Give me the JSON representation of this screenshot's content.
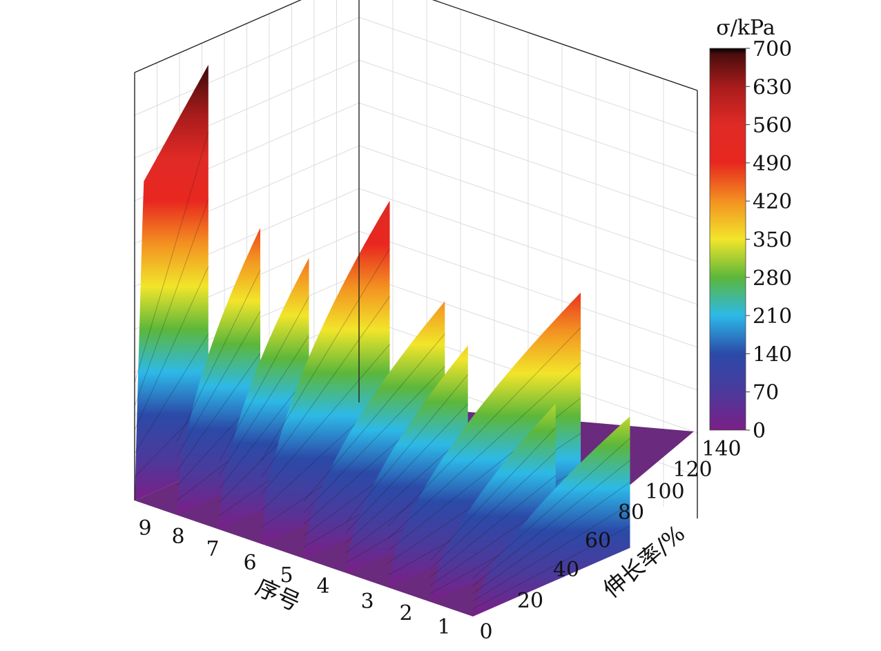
{
  "chart_data": {
    "type": "area",
    "chart_kind": "3d-waterfall",
    "xlabel": "序号",
    "ylabel": "伸长率/%",
    "zlabel": "",
    "colorbar_title": "σ/kPa",
    "x_ticks": [
      "9",
      "8",
      "7",
      "6",
      "5",
      "4",
      "3",
      "2",
      "1"
    ],
    "y_ticks": [
      "0",
      "20",
      "40",
      "60",
      "80",
      "100",
      "120",
      "140"
    ],
    "y_range": [
      0,
      140
    ],
    "z_range": [
      0,
      700
    ],
    "colorbar_ticks": [
      "0",
      "70",
      "140",
      "210",
      "280",
      "350",
      "420",
      "490",
      "560",
      "630",
      "700"
    ],
    "grid": true,
    "colormap": [
      "#7b1f86",
      "#2b4aa8",
      "#2db9e8",
      "#5cb73a",
      "#f2e52a",
      "#f39121",
      "#e8271f",
      "#c41c1c",
      "#4a0d0d",
      "#000000"
    ],
    "series": [
      {
        "sample": "9",
        "max_elongation": 46,
        "max_stress": 660
      },
      {
        "sample": "8",
        "max_elongation": 52,
        "max_stress": 410
      },
      {
        "sample": "7",
        "max_elongation": 56,
        "max_stress": 380
      },
      {
        "sample": "6",
        "max_elongation": 80,
        "max_stress": 470
      },
      {
        "sample": "5",
        "max_elongation": 88,
        "max_stress": 320
      },
      {
        "sample": "4",
        "max_elongation": 76,
        "max_stress": 285
      },
      {
        "sample": "3",
        "max_elongation": 120,
        "max_stress": 345
      },
      {
        "sample": "2",
        "max_elongation": 78,
        "max_stress": 235
      },
      {
        "sample": "1",
        "max_elongation": 98,
        "max_stress": 215
      }
    ]
  }
}
